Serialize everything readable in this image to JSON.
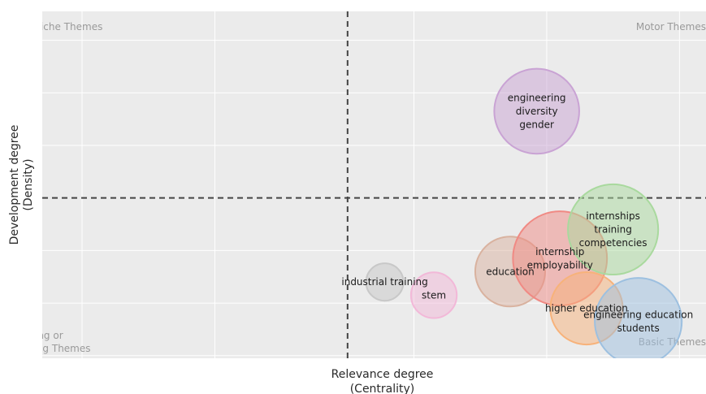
{
  "chart_data": {
    "type": "scatter",
    "xlabel": [
      "Relevance degree",
      "(Centrality)"
    ],
    "ylabel": [
      "Development degree",
      "(Density)"
    ],
    "xlim": [
      -0.46,
      0.54
    ],
    "ylim": [
      -0.61,
      0.71
    ],
    "divider_x": 0,
    "divider_y": 0,
    "grid": true,
    "quadrant_labels": {
      "top_left": [
        "Niche Themes"
      ],
      "top_right": [
        "Motor Themes"
      ],
      "bottom_left": [
        "Emerging or",
        "Declining Themes"
      ],
      "bottom_right": [
        "Basic Themes"
      ]
    },
    "clusters": [
      {
        "lines": [
          "industrial training"
        ],
        "x": 0.056,
        "y": -0.32,
        "size": 0.012,
        "color": "#c8c8c8"
      },
      {
        "lines": [
          "stem"
        ],
        "x": 0.13,
        "y": -0.37,
        "size": 0.018,
        "color": "#f2b8d8"
      },
      {
        "lines": [
          "education"
        ],
        "x": 0.245,
        "y": -0.28,
        "size": 0.042,
        "color": "#d9b29f"
      },
      {
        "lines": [
          "engineering",
          "diversity",
          "gender"
        ],
        "x": 0.285,
        "y": 0.33,
        "size": 0.062,
        "color": "#c9a3d4"
      },
      {
        "lines": [
          "internship",
          "employability"
        ],
        "x": 0.32,
        "y": -0.23,
        "size": 0.076,
        "color": "#f08a84"
      },
      {
        "lines": [
          "higher education"
        ],
        "x": 0.36,
        "y": -0.42,
        "size": 0.045,
        "color": "#f7b27a"
      },
      {
        "lines": [
          "internships",
          "training",
          "competencies"
        ],
        "x": 0.4,
        "y": -0.12,
        "size": 0.07,
        "color": "#a9d99e"
      },
      {
        "lines": [
          "engineering education",
          "students"
        ],
        "x": 0.438,
        "y": -0.47,
        "size": 0.065,
        "color": "#9dc0e0"
      }
    ]
  }
}
